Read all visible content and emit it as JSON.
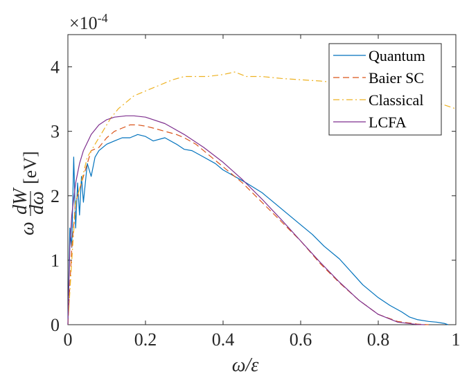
{
  "chart_data": {
    "type": "line",
    "title": "",
    "xlabel": "ω/ε",
    "ylabel_main": "ω",
    "ylabel_num": "dW",
    "ylabel_den": "dω",
    "ylabel_unit": "[eV]",
    "exponent_prefix": "×10",
    "exponent_power": "-4",
    "xlim": [
      0,
      1
    ],
    "ylim": [
      0,
      4.5
    ],
    "x_ticks": [
      0,
      0.2,
      0.4,
      0.6,
      0.8,
      1
    ],
    "x_tick_labels": [
      "0",
      "0.2",
      "0.4",
      "0.6",
      "0.8",
      "1"
    ],
    "y_ticks": [
      0,
      1,
      2,
      3,
      4
    ],
    "y_tick_labels": [
      "0",
      "1",
      "2",
      "3",
      "4"
    ],
    "grid": false,
    "legend_position": "top-right",
    "series": [
      {
        "name": "Quantum",
        "color": "#0072BD",
        "style": "solid",
        "x": [
          0,
          0.005,
          0.01,
          0.015,
          0.02,
          0.025,
          0.03,
          0.035,
          0.04,
          0.05,
          0.06,
          0.07,
          0.08,
          0.1,
          0.12,
          0.14,
          0.16,
          0.18,
          0.2,
          0.22,
          0.25,
          0.28,
          0.3,
          0.32,
          0.35,
          0.38,
          0.4,
          0.43,
          0.46,
          0.5,
          0.53,
          0.56,
          0.6,
          0.63,
          0.66,
          0.7,
          0.73,
          0.76,
          0.8,
          0.83,
          0.86,
          0.88,
          0.9,
          0.93,
          0.95,
          0.97,
          0.98
        ],
        "values": [
          0,
          1.5,
          1.2,
          2.6,
          1.5,
          2.2,
          1.7,
          2.3,
          1.9,
          2.5,
          2.3,
          2.6,
          2.7,
          2.8,
          2.85,
          2.9,
          2.9,
          2.95,
          2.92,
          2.85,
          2.9,
          2.8,
          2.72,
          2.7,
          2.6,
          2.5,
          2.4,
          2.3,
          2.2,
          2.05,
          1.9,
          1.75,
          1.55,
          1.4,
          1.22,
          1.02,
          0.82,
          0.62,
          0.42,
          0.3,
          0.2,
          0.12,
          0.08,
          0.05,
          0.04,
          0.02,
          0.0
        ]
      },
      {
        "name": "Baier SC",
        "color": "#D95319",
        "style": "dashed",
        "x": [
          0,
          0.01,
          0.02,
          0.03,
          0.04,
          0.05,
          0.06,
          0.08,
          0.1,
          0.12,
          0.14,
          0.16,
          0.18,
          0.2,
          0.22,
          0.25,
          0.28,
          0.3,
          0.33,
          0.36,
          0.4,
          0.45,
          0.5,
          0.55,
          0.6,
          0.65,
          0.7,
          0.75,
          0.8,
          0.85,
          0.9,
          0.93
        ],
        "values": [
          0,
          1.2,
          1.9,
          2.1,
          2.3,
          2.5,
          2.7,
          2.75,
          2.9,
          3.0,
          3.05,
          3.1,
          3.1,
          3.08,
          3.05,
          3.0,
          2.95,
          2.9,
          2.8,
          2.65,
          2.45,
          2.2,
          1.9,
          1.6,
          1.3,
          0.95,
          0.65,
          0.38,
          0.16,
          0.05,
          0.01,
          0.0
        ]
      },
      {
        "name": "Classical",
        "color": "#EDB120",
        "style": "dashdot",
        "x": [
          0,
          0.01,
          0.02,
          0.03,
          0.05,
          0.07,
          0.09,
          0.11,
          0.13,
          0.15,
          0.17,
          0.19,
          0.21,
          0.23,
          0.25,
          0.27,
          0.3,
          0.33,
          0.36,
          0.4,
          0.43,
          0.46,
          0.5,
          0.55,
          0.6,
          0.65,
          0.7,
          0.75,
          0.8,
          0.85,
          0.9,
          0.95,
          1.0
        ],
        "values": [
          0,
          1.0,
          1.9,
          2.1,
          2.6,
          2.8,
          3.0,
          3.2,
          3.35,
          3.45,
          3.55,
          3.6,
          3.65,
          3.7,
          3.75,
          3.8,
          3.85,
          3.85,
          3.85,
          3.88,
          3.92,
          3.85,
          3.85,
          3.82,
          3.8,
          3.78,
          3.75,
          3.72,
          3.7,
          3.6,
          3.5,
          3.45,
          3.35
        ]
      },
      {
        "name": "LCFA",
        "color": "#7E2F8E",
        "style": "solid",
        "x": [
          0,
          0.005,
          0.01,
          0.02,
          0.03,
          0.04,
          0.06,
          0.08,
          0.1,
          0.12,
          0.15,
          0.17,
          0.2,
          0.25,
          0.3,
          0.35,
          0.4,
          0.45,
          0.5,
          0.55,
          0.6,
          0.65,
          0.7,
          0.75,
          0.8,
          0.85,
          0.9,
          0.92
        ],
        "values": [
          0,
          1.2,
          1.7,
          2.2,
          2.5,
          2.7,
          2.95,
          3.1,
          3.18,
          3.22,
          3.24,
          3.24,
          3.22,
          3.12,
          2.95,
          2.75,
          2.52,
          2.25,
          1.95,
          1.63,
          1.3,
          0.97,
          0.66,
          0.38,
          0.16,
          0.04,
          0.003,
          0.0
        ]
      }
    ]
  }
}
